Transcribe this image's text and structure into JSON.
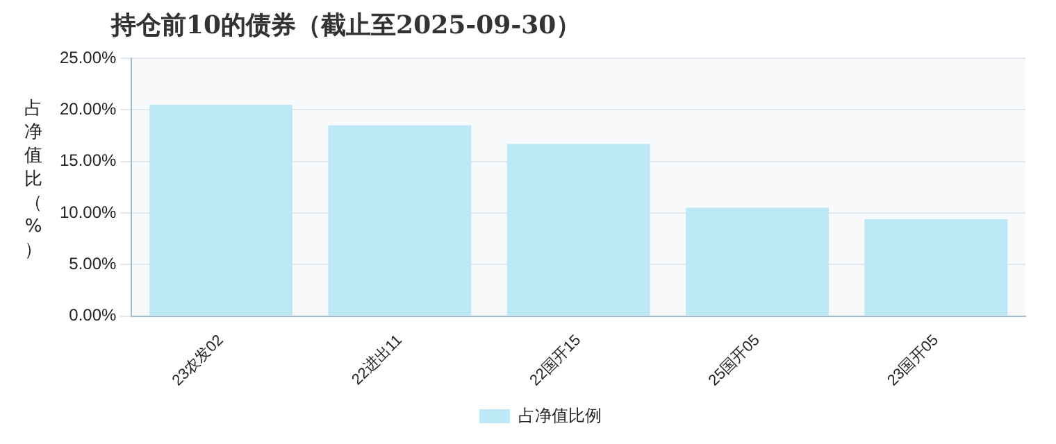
{
  "chart_data": {
    "type": "bar",
    "title": "持仓前10的债券（截止至2025-09-30）",
    "ylabel": "占净值比（%）",
    "categories": [
      "23农发02",
      "22进出11",
      "22国开15",
      "25国开05",
      "23国开05"
    ],
    "series": [
      {
        "name": "占净值比例",
        "color": "#bde8f5",
        "values": [
          20.5,
          18.5,
          16.7,
          10.5,
          9.4
        ]
      }
    ],
    "ylim": [
      0,
      25
    ],
    "yticks": [
      {
        "value": 0,
        "label": "0.00%"
      },
      {
        "value": 5,
        "label": "5.00%"
      },
      {
        "value": 10,
        "label": "10.00%"
      },
      {
        "value": 15,
        "label": "15.00%"
      },
      {
        "value": 20,
        "label": "20.00%"
      },
      {
        "value": 25,
        "label": "25.00%"
      }
    ],
    "grid": "y",
    "legend": "bottom"
  }
}
